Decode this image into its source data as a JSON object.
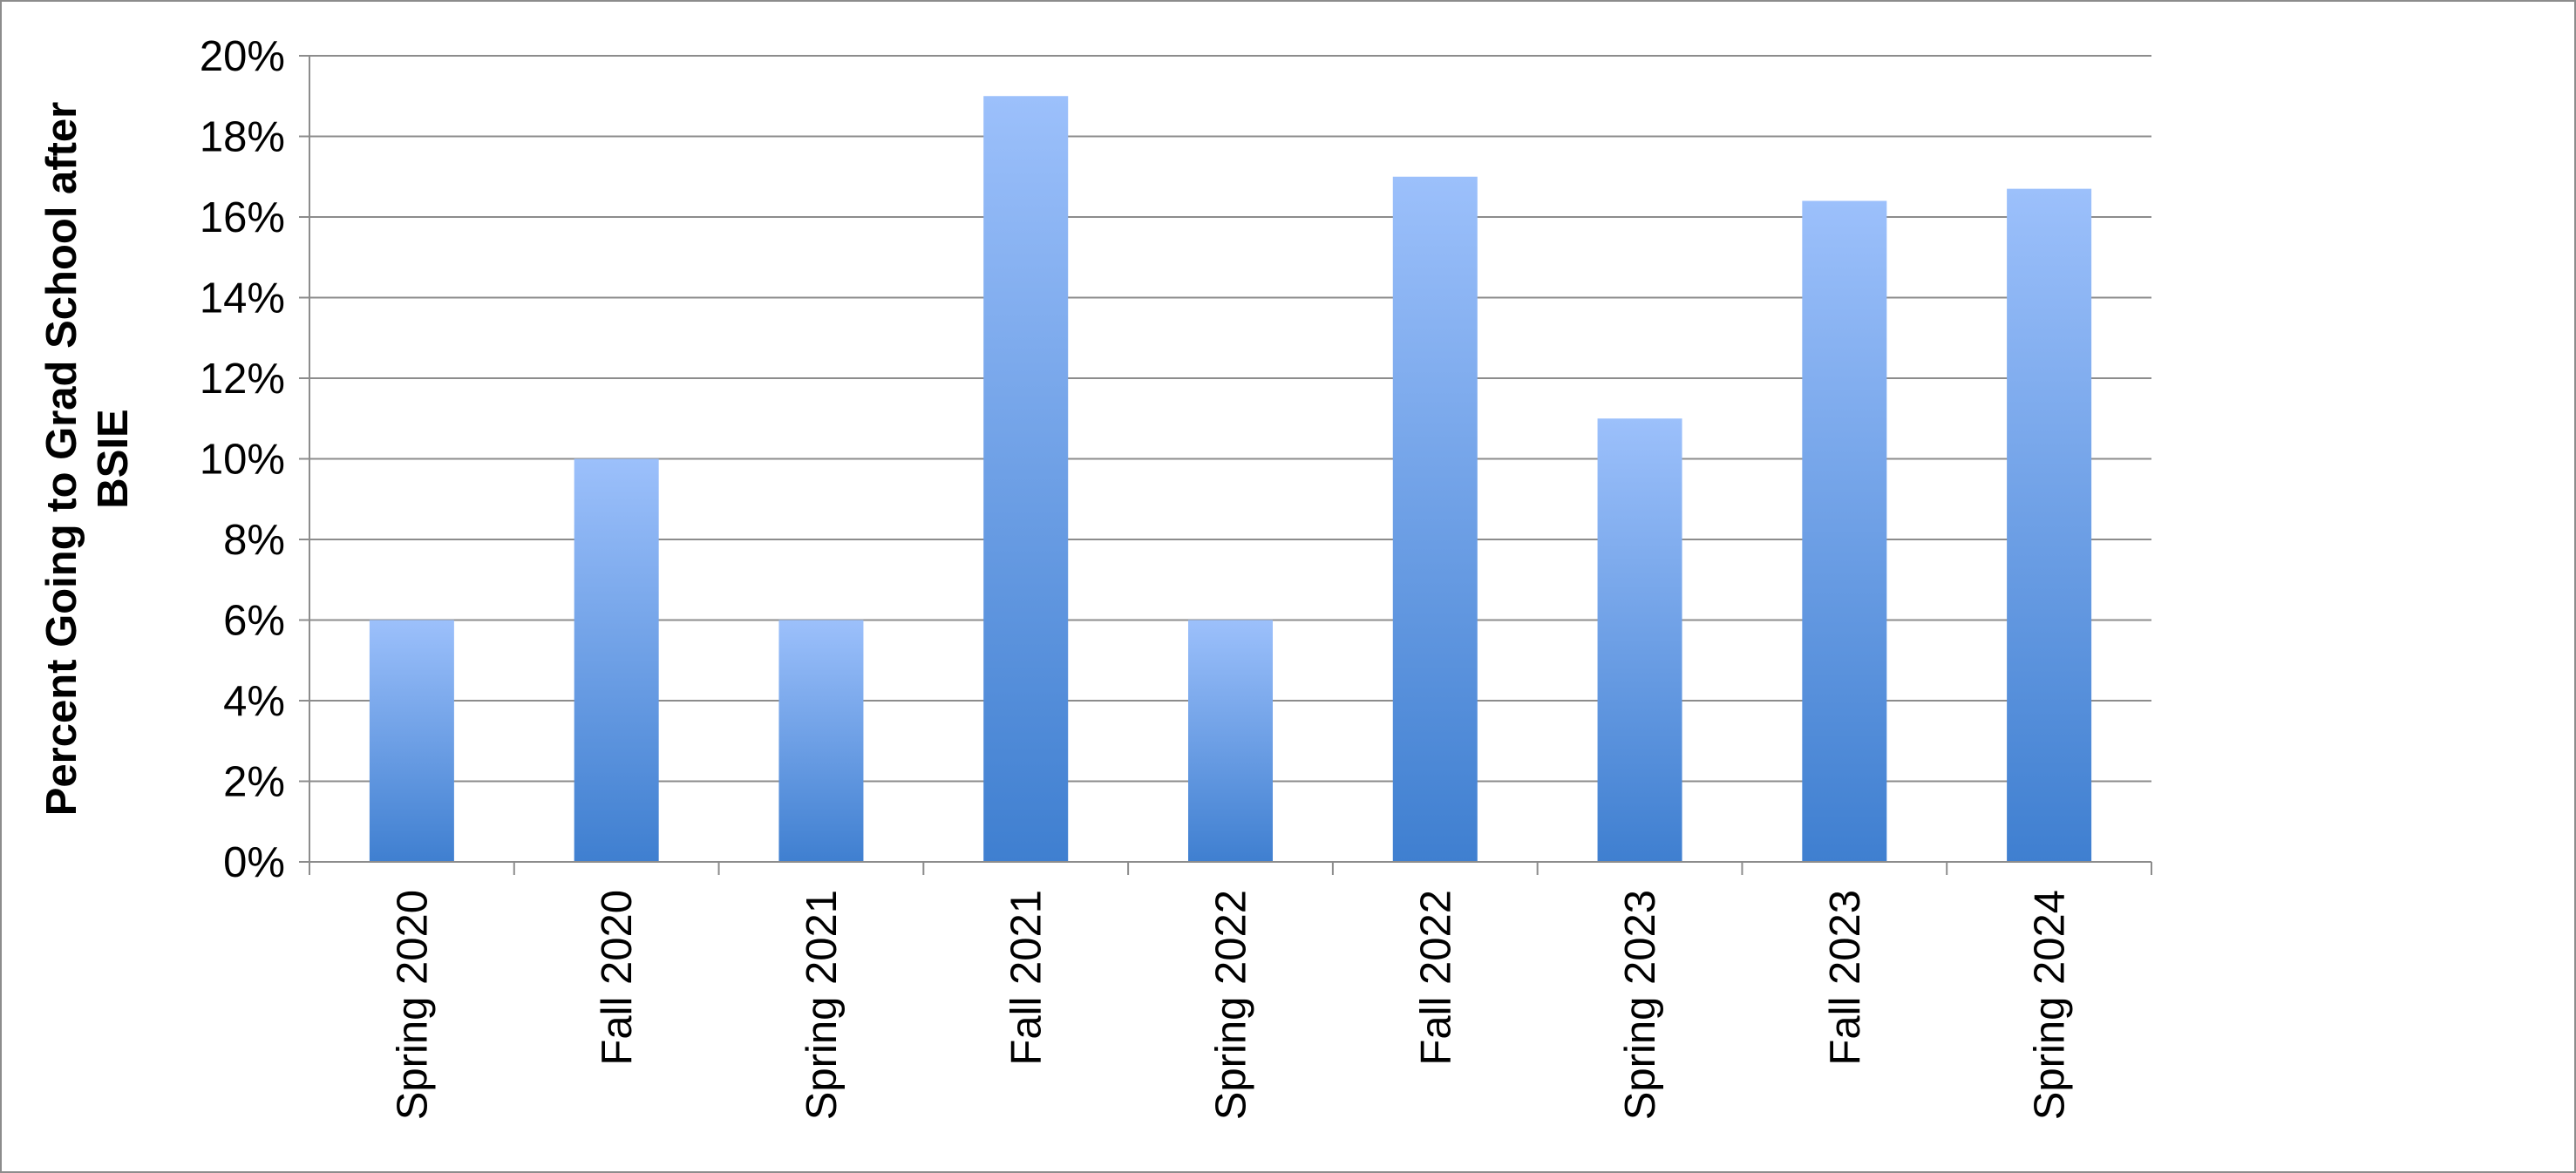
{
  "chart_data": {
    "type": "bar",
    "title": "",
    "xlabel": "",
    "ylabel": "Percent Going to Grad School after BSIE",
    "ylabel_lines": [
      "Percent Going to Grad School after",
      "BSIE"
    ],
    "categories": [
      "Spring 2020",
      "Fall 2020",
      "Spring 2021",
      "Fall 2021",
      "Spring 2022",
      "Fall 2022",
      "Spring 2023",
      "Fall 2023",
      "Spring 2024"
    ],
    "values": [
      6,
      10,
      6,
      19,
      6,
      17,
      11,
      16.4,
      16.7
    ],
    "value_format": "percent",
    "ylim": [
      0,
      20
    ],
    "yticks": [
      0,
      2,
      4,
      6,
      8,
      10,
      12,
      14,
      16,
      18,
      20
    ],
    "ytick_labels": [
      "0%",
      "2%",
      "4%",
      "6%",
      "8%",
      "10%",
      "12%",
      "14%",
      "16%",
      "18%",
      "20%"
    ],
    "grid": true,
    "legend": "none",
    "colors": {
      "bar_top": "#9cc0fb",
      "bar_bottom": "#3f7fd0",
      "gridline": "#8c8c8c",
      "axis": "#8c8c8c",
      "frame": "#8c8c8c"
    }
  }
}
